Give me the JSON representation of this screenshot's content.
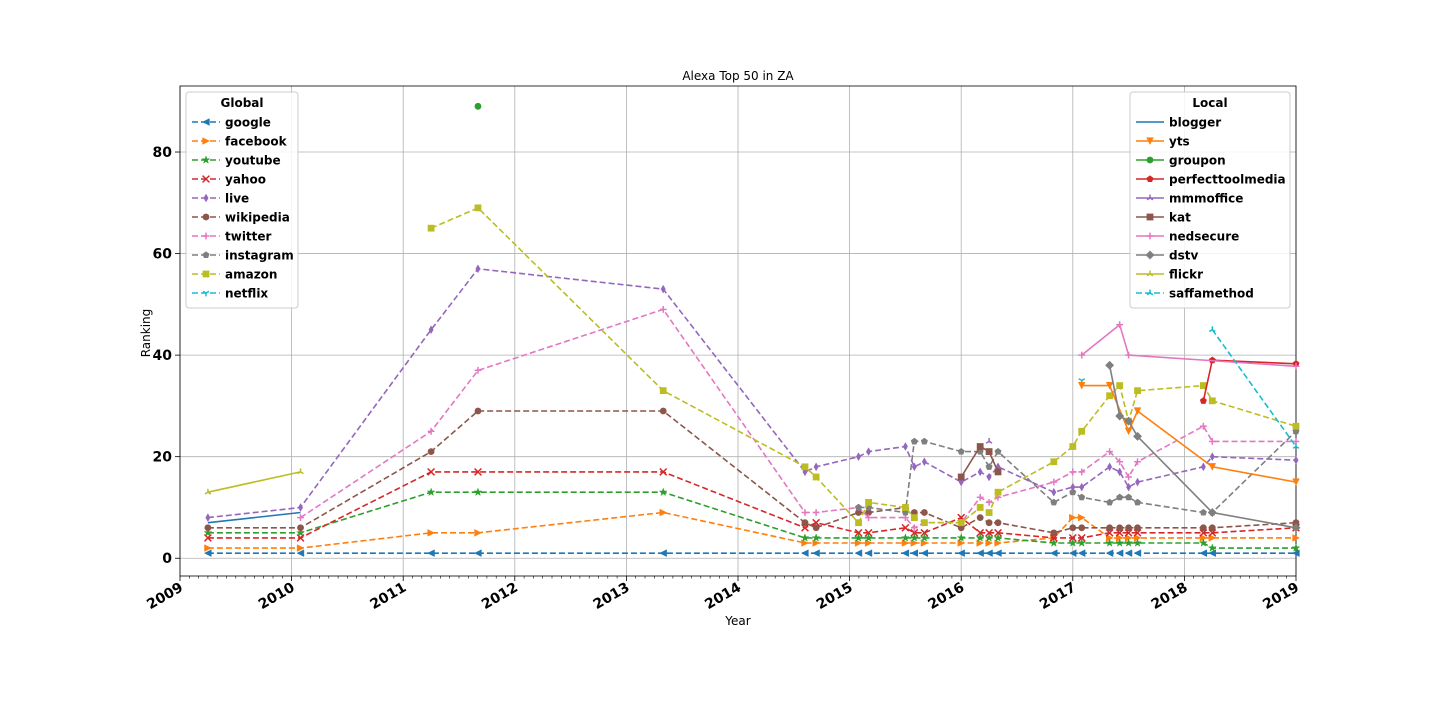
{
  "chart_data": {
    "type": "line",
    "title": "Alexa Top 50 in ZA",
    "xlabel": "Year",
    "ylabel": "Ranking",
    "xlim": [
      2009.0,
      2019.0
    ],
    "ylim": [
      -3.5,
      93.0
    ],
    "x_ticks": [
      2009,
      2010,
      2011,
      2012,
      2013,
      2014,
      2015,
      2016,
      2017,
      2018,
      2019
    ],
    "y_ticks": [
      0,
      20,
      40,
      60,
      80
    ],
    "grid": true,
    "legends": [
      {
        "title": "Global",
        "placement": "top-left",
        "series": [
          "google",
          "facebook",
          "youtube",
          "yahoo",
          "live",
          "wikipedia",
          "twitter",
          "instagram",
          "amazon",
          "netflix"
        ]
      },
      {
        "title": "Local",
        "placement": "top-right",
        "series": [
          "blogger",
          "yts",
          "groupon",
          "perfecttoolmedia",
          "mmmoffice",
          "kat",
          "nedsecure",
          "dstv",
          "flickr",
          "saffamethod"
        ]
      }
    ],
    "series": [
      {
        "name": "google",
        "group": "Global",
        "color": "#1f77b4",
        "dash": true,
        "marker": "triangle-left",
        "x": [
          2009.25,
          2010.08,
          2011.25,
          2011.67,
          2013.33,
          2014.6,
          2014.7,
          2015.08,
          2015.17,
          2015.5,
          2015.58,
          2015.67,
          2016.0,
          2016.17,
          2016.25,
          2016.33,
          2016.83,
          2017.0,
          2017.08,
          2017.33,
          2017.42,
          2017.5,
          2017.58,
          2018.17,
          2018.25,
          2019.0
        ],
        "y": [
          1,
          1,
          1,
          1,
          1,
          1,
          1,
          1,
          1,
          1,
          1,
          1,
          1,
          1,
          1,
          1,
          1,
          1,
          1,
          1,
          1,
          1,
          1,
          1,
          1,
          1
        ]
      },
      {
        "name": "facebook",
        "group": "Global",
        "color": "#ff7f0e",
        "dash": true,
        "marker": "triangle-right",
        "x": [
          2009.25,
          2010.08,
          2011.25,
          2011.67,
          2013.33,
          2014.6,
          2014.7,
          2015.08,
          2015.17,
          2015.5,
          2015.58,
          2015.67,
          2016.0,
          2016.17,
          2016.25,
          2016.33,
          2016.83,
          2017.0,
          2017.08,
          2017.33,
          2017.42,
          2017.5,
          2017.58,
          2018.17,
          2018.25,
          2019.0
        ],
        "y": [
          2,
          2,
          5,
          5,
          9,
          3,
          3,
          3,
          3,
          3,
          3,
          3,
          3,
          3,
          3,
          3,
          4,
          8,
          8,
          4,
          4,
          4,
          4,
          4,
          4,
          4
        ]
      },
      {
        "name": "youtube",
        "group": "Global",
        "color": "#2ca02c",
        "dash": true,
        "marker": "star",
        "x": [
          2009.25,
          2010.08,
          2011.25,
          2011.67,
          2013.33,
          2014.6,
          2014.7,
          2015.08,
          2015.17,
          2015.5,
          2015.58,
          2015.67,
          2016.0,
          2016.17,
          2016.25,
          2016.33,
          2016.83,
          2017.0,
          2017.08,
          2017.33,
          2017.42,
          2017.5,
          2017.58,
          2018.17,
          2018.25,
          2019.0
        ],
        "y": [
          5,
          5,
          13,
          13,
          13,
          4,
          4,
          4,
          4,
          4,
          4,
          4,
          4,
          4,
          4,
          4,
          3,
          3,
          3,
          3,
          3,
          3,
          3,
          3,
          2,
          2
        ]
      },
      {
        "name": "yahoo",
        "group": "Global",
        "color": "#d62728",
        "dash": true,
        "marker": "x",
        "x": [
          2009.25,
          2010.08,
          2011.25,
          2011.67,
          2013.33,
          2014.6,
          2014.7,
          2015.08,
          2015.17,
          2015.5,
          2015.58,
          2015.67,
          2016.0,
          2016.17,
          2016.25,
          2016.33,
          2016.83,
          2017.0,
          2017.08,
          2017.33,
          2017.42,
          2017.5,
          2017.58,
          2018.17,
          2018.25,
          2019.0
        ],
        "y": [
          4,
          4,
          17,
          17,
          17,
          6,
          7,
          5,
          5,
          6,
          5,
          5,
          8,
          5,
          5,
          5,
          4,
          4,
          4,
          5,
          5,
          5,
          5,
          5,
          5,
          6
        ]
      },
      {
        "name": "live",
        "group": "Global",
        "color": "#9467bd",
        "dash": true,
        "marker": "thin-diamond",
        "x": [
          2009.25,
          2010.08,
          2011.25,
          2011.67,
          2013.33,
          2014.6,
          2014.7,
          2015.08,
          2015.17,
          2015.5,
          2015.58,
          2015.67,
          2016.0,
          2016.17,
          2016.25,
          2016.33,
          2016.83,
          2017.0,
          2017.08,
          2017.33,
          2017.42,
          2017.5,
          2017.58,
          2018.17,
          2018.25,
          2019.0
        ],
        "y": [
          8,
          10,
          45,
          57,
          53,
          17,
          18,
          20,
          21,
          22,
          18,
          19,
          15,
          17,
          16,
          18,
          13,
          14,
          14,
          18,
          17,
          14,
          15,
          18,
          20,
          19.3
        ]
      },
      {
        "name": "wikipedia",
        "group": "Global",
        "color": "#8c564b",
        "dash": true,
        "marker": "circle",
        "x": [
          2009.25,
          2010.08,
          2011.25,
          2011.67,
          2013.33,
          2014.6,
          2014.7,
          2015.08,
          2015.17,
          2015.5,
          2015.58,
          2015.67,
          2016.0,
          2016.17,
          2016.25,
          2016.33,
          2016.83,
          2017.0,
          2017.08,
          2017.33,
          2017.42,
          2017.5,
          2017.58,
          2018.17,
          2018.25,
          2019.0
        ],
        "y": [
          6,
          6,
          21,
          29,
          29,
          7,
          6,
          9,
          9,
          10,
          9,
          9,
          6,
          8,
          7,
          7,
          5,
          6,
          6,
          6,
          6,
          6,
          6,
          6,
          6,
          7
        ]
      },
      {
        "name": "twitter",
        "group": "Global",
        "color": "#e377c2",
        "dash": true,
        "marker": "plus",
        "x": [
          2010.08,
          2011.25,
          2011.67,
          2013.33,
          2014.6,
          2014.7,
          2015.08,
          2015.17,
          2015.5,
          2015.58,
          2015.67,
          2016.0,
          2016.17,
          2016.25,
          2016.33,
          2016.83,
          2017.0,
          2017.08,
          2017.33,
          2017.42,
          2017.5,
          2017.58,
          2018.17,
          2018.25,
          2019.0
        ],
        "y": [
          8,
          25,
          37,
          49,
          9,
          9,
          10,
          8,
          8,
          6,
          7,
          7,
          12,
          11,
          12,
          15,
          17,
          17,
          21,
          19,
          16,
          19,
          26,
          23,
          23
        ]
      },
      {
        "name": "instagram",
        "group": "Global",
        "color": "#7f7f7f",
        "dash": true,
        "marker": "pentagon",
        "x": [
          2015.08,
          2015.17,
          2015.5,
          2015.58,
          2015.67,
          2016.0,
          2016.17,
          2016.25,
          2016.33,
          2016.83,
          2017.0,
          2017.08,
          2017.33,
          2017.42,
          2017.5,
          2017.58,
          2018.17,
          2018.25,
          2019.0
        ],
        "y": [
          10,
          10,
          9,
          23,
          23,
          21,
          21,
          18,
          21,
          11,
          13,
          12,
          11,
          12,
          12,
          11,
          9,
          9,
          25
        ]
      },
      {
        "name": "amazon",
        "group": "Global",
        "color": "#bcbd22",
        "dash": true,
        "marker": "square",
        "x": [
          2011.25,
          2011.67,
          2013.33,
          2014.6,
          2014.7,
          2015.08,
          2015.17,
          2015.5,
          2015.58,
          2015.67,
          2016.0,
          2016.17,
          2016.25,
          2016.33,
          2016.83,
          2017.0,
          2017.08,
          2017.33,
          2017.42,
          2017.5,
          2017.58,
          2018.17,
          2018.25,
          2019.0
        ],
        "y": [
          65,
          69,
          33,
          18,
          16,
          7,
          11,
          10,
          8,
          7,
          7,
          10,
          9,
          13,
          19,
          22,
          25,
          32,
          34,
          27,
          33,
          34,
          31,
          26
        ]
      },
      {
        "name": "netflix",
        "group": "Global",
        "color": "#17becf",
        "dash": true,
        "marker": "tri-down",
        "x": [
          2017.08
        ],
        "y": [
          35
        ]
      },
      {
        "name": "blogger",
        "group": "Local",
        "color": "#1f77b4",
        "dash": false,
        "marker": "none",
        "x": [
          2009.25,
          2010.08
        ],
        "y": [
          7,
          9
        ]
      },
      {
        "name": "yts",
        "group": "Local",
        "color": "#ff7f0e",
        "dash": false,
        "marker": "triangle-down",
        "x": [
          2017.08,
          2017.33,
          2017.5,
          2017.58,
          2018.25,
          2019.0
        ],
        "y": [
          34,
          34,
          25,
          29,
          18,
          15
        ]
      },
      {
        "name": "groupon",
        "group": "Local",
        "color": "#2ca02c",
        "dash": false,
        "marker": "circle",
        "x": [
          2011.67
        ],
        "y": [
          89
        ]
      },
      {
        "name": "perfecttoolmedia",
        "group": "Local",
        "color": "#d62728",
        "dash": false,
        "marker": "pentagon",
        "x": [
          2018.17,
          2018.25,
          2019.0
        ],
        "y": [
          31,
          39,
          38.3
        ]
      },
      {
        "name": "mmmoffice",
        "group": "Local",
        "color": "#9467bd",
        "dash": false,
        "marker": "tri-up",
        "x": [
          2016.25
        ],
        "y": [
          23
        ]
      },
      {
        "name": "kat",
        "group": "Local",
        "color": "#8c564b",
        "dash": false,
        "marker": "square",
        "x": [
          2016.0,
          2016.17,
          2016.25,
          2016.33
        ],
        "y": [
          16,
          22,
          21,
          17
        ]
      },
      {
        "name": "nedsecure",
        "group": "Local",
        "color": "#e377c2",
        "dash": false,
        "marker": "plus",
        "x": [
          2017.08,
          2017.42,
          2017.5,
          2019.0
        ],
        "y": [
          40,
          46,
          40,
          37.8
        ]
      },
      {
        "name": "dstv",
        "group": "Local",
        "color": "#7f7f7f",
        "dash": false,
        "marker": "diamond",
        "x": [
          2017.33,
          2017.42,
          2017.5,
          2017.58,
          2018.25,
          2019.0
        ],
        "y": [
          38,
          28,
          27,
          24,
          9,
          6
        ]
      },
      {
        "name": "flickr",
        "group": "Local",
        "color": "#bcbd22",
        "dash": false,
        "marker": "tri-up",
        "x": [
          2009.25,
          2010.08
        ],
        "y": [
          13,
          17
        ]
      },
      {
        "name": "saffamethod",
        "group": "Local",
        "color": "#17becf",
        "dash": true,
        "marker": "tri-up",
        "x": [
          2018.25,
          2019.0
        ],
        "y": [
          45,
          22
        ]
      }
    ]
  }
}
